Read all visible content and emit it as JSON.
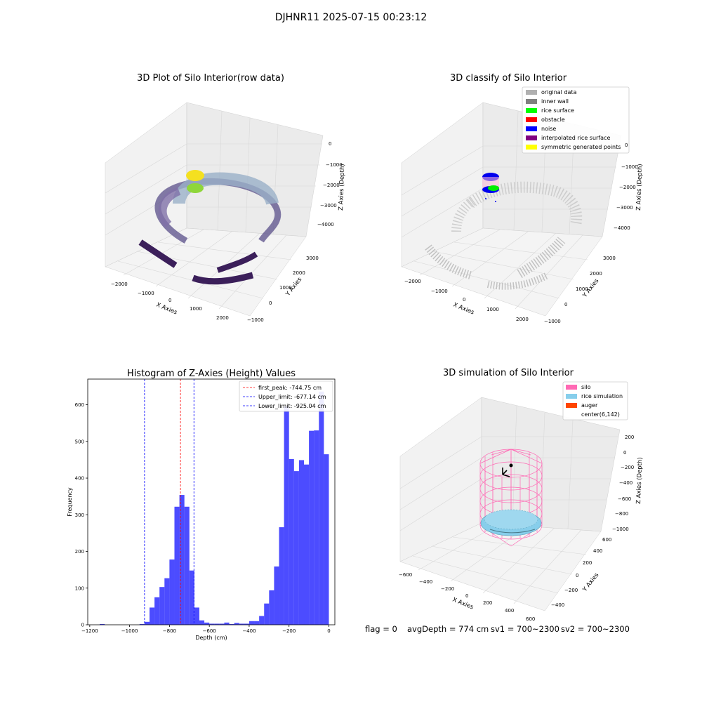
{
  "suptitle": "DJHNR11 2025-07-15 00:23:12",
  "panels": {
    "raw": {
      "title": "3D Plot of Silo Interior(row data)",
      "xlabel": "X Axies",
      "ylabel": "Y Axies",
      "zlabel": "Z Axies (Depth)",
      "xticks": [
        "−2000",
        "−1000",
        "0",
        "1000",
        "2000"
      ],
      "yticks": [
        "−1000",
        "0",
        "1000",
        "2000",
        "3000"
      ],
      "zticks": [
        "0",
        "−1000",
        "−2000",
        "−3000",
        "−4000"
      ]
    },
    "classify": {
      "title": "3D classify of Silo Interior",
      "xlabel": "X Axies",
      "ylabel": "Y Axies",
      "zlabel": "Z Axies (Depth)",
      "xticks": [
        "−2000",
        "−1000",
        "0",
        "1000",
        "2000"
      ],
      "yticks": [
        "−1000",
        "0",
        "1000",
        "2000",
        "3000"
      ],
      "zticks": [
        "0",
        "−1000",
        "−2000",
        "−3000",
        "−4000"
      ],
      "legend": [
        {
          "label": "original data",
          "color": "#b0b0b0"
        },
        {
          "label": "inner wall",
          "color": "#808080"
        },
        {
          "label": "rice surface",
          "color": "#00ff00"
        },
        {
          "label": "obstacle",
          "color": "#ff0000"
        },
        {
          "label": "noise",
          "color": "#0000ff"
        },
        {
          "label": "interpolated rice surface",
          "color": "#800080"
        },
        {
          "label": "symmetric generated points",
          "color": "#ffff00"
        }
      ]
    },
    "simulation": {
      "title": "3D simulation of Silo Interior",
      "xlabel": "X Axies",
      "ylabel": "Y Axies",
      "zlabel": "Z Axies (Depth)",
      "xticks": [
        "−600",
        "−400",
        "−200",
        "0",
        "200",
        "400",
        "600"
      ],
      "yticks": [
        "−400",
        "−200",
        "0",
        "200",
        "400",
        "600"
      ],
      "zticks": [
        "200",
        "0",
        "−200",
        "−400",
        "−600",
        "−800",
        "−1000"
      ],
      "legend": [
        {
          "label": "silo",
          "color": "#ff69b4"
        },
        {
          "label": "rice simulation",
          "color": "#87ceeb"
        },
        {
          "label": "auger",
          "color": "#ff4500"
        },
        {
          "label": "center(6,142)",
          "color": "#ffffff"
        }
      ]
    }
  },
  "status": {
    "flag": "flag = 0",
    "avg_depth": "avgDepth = 774 cm",
    "sv1": "sv1 = 700~2300",
    "sv2": "sv2 = 700~2300"
  },
  "chart_data": [
    {
      "type": "histogram",
      "title": "Histogram of Z-Axies (Height) Values",
      "xlabel": "Depth (cm)",
      "ylabel": "Frequency",
      "xlim": [
        -1210,
        30
      ],
      "ylim": [
        0,
        670
      ],
      "xticks": [
        -1200,
        -1000,
        -800,
        -600,
        -400,
        -200,
        0
      ],
      "yticks": [
        0,
        100,
        200,
        300,
        400,
        500,
        600
      ],
      "bar_color": "#0000ff",
      "bins": [
        {
          "x0": -1150,
          "x1": -1125,
          "count": 2
        },
        {
          "x0": -950,
          "x1": -925,
          "count": 2
        },
        {
          "x0": -925,
          "x1": -900,
          "count": 8
        },
        {
          "x0": -900,
          "x1": -875,
          "count": 47
        },
        {
          "x0": -875,
          "x1": -850,
          "count": 75
        },
        {
          "x0": -850,
          "x1": -825,
          "count": 103
        },
        {
          "x0": -825,
          "x1": -800,
          "count": 127
        },
        {
          "x0": -800,
          "x1": -775,
          "count": 178
        },
        {
          "x0": -775,
          "x1": -750,
          "count": 322
        },
        {
          "x0": -750,
          "x1": -725,
          "count": 354
        },
        {
          "x0": -725,
          "x1": -700,
          "count": 322
        },
        {
          "x0": -700,
          "x1": -675,
          "count": 148
        },
        {
          "x0": -675,
          "x1": -650,
          "count": 47
        },
        {
          "x0": -650,
          "x1": -625,
          "count": 12
        },
        {
          "x0": -625,
          "x1": -600,
          "count": 6
        },
        {
          "x0": -600,
          "x1": -575,
          "count": 3
        },
        {
          "x0": -575,
          "x1": -550,
          "count": 3
        },
        {
          "x0": -550,
          "x1": -525,
          "count": 3
        },
        {
          "x0": -525,
          "x1": -500,
          "count": 6
        },
        {
          "x0": -500,
          "x1": -475,
          "count": 2
        },
        {
          "x0": -475,
          "x1": -450,
          "count": 5
        },
        {
          "x0": -450,
          "x1": -425,
          "count": 3
        },
        {
          "x0": -425,
          "x1": -400,
          "count": 3
        },
        {
          "x0": -400,
          "x1": -375,
          "count": 10
        },
        {
          "x0": -375,
          "x1": -350,
          "count": 10
        },
        {
          "x0": -350,
          "x1": -325,
          "count": 24
        },
        {
          "x0": -325,
          "x1": -300,
          "count": 58
        },
        {
          "x0": -300,
          "x1": -275,
          "count": 94
        },
        {
          "x0": -275,
          "x1": -250,
          "count": 159
        },
        {
          "x0": -250,
          "x1": -225,
          "count": 266
        },
        {
          "x0": -225,
          "x1": -200,
          "count": 595
        },
        {
          "x0": -200,
          "x1": -175,
          "count": 452
        },
        {
          "x0": -175,
          "x1": -150,
          "count": 419
        },
        {
          "x0": -150,
          "x1": -125,
          "count": 449
        },
        {
          "x0": -125,
          "x1": -100,
          "count": 437
        },
        {
          "x0": -100,
          "x1": -75,
          "count": 529
        },
        {
          "x0": -75,
          "x1": -50,
          "count": 530
        },
        {
          "x0": -50,
          "x1": -25,
          "count": 636
        },
        {
          "x0": -25,
          "x1": 0,
          "count": 465
        }
      ],
      "vlines": [
        {
          "label": "first_peak: -744.75 cm",
          "x": -744.75,
          "color": "#ff0000"
        },
        {
          "label": "Upper_limit: -677.14 cm",
          "x": -677.14,
          "color": "#0000ff"
        },
        {
          "label": "Lower_limit: -925.04 cm",
          "x": -925.04,
          "color": "#0000ff"
        }
      ],
      "legend_position": "upper right"
    }
  ]
}
